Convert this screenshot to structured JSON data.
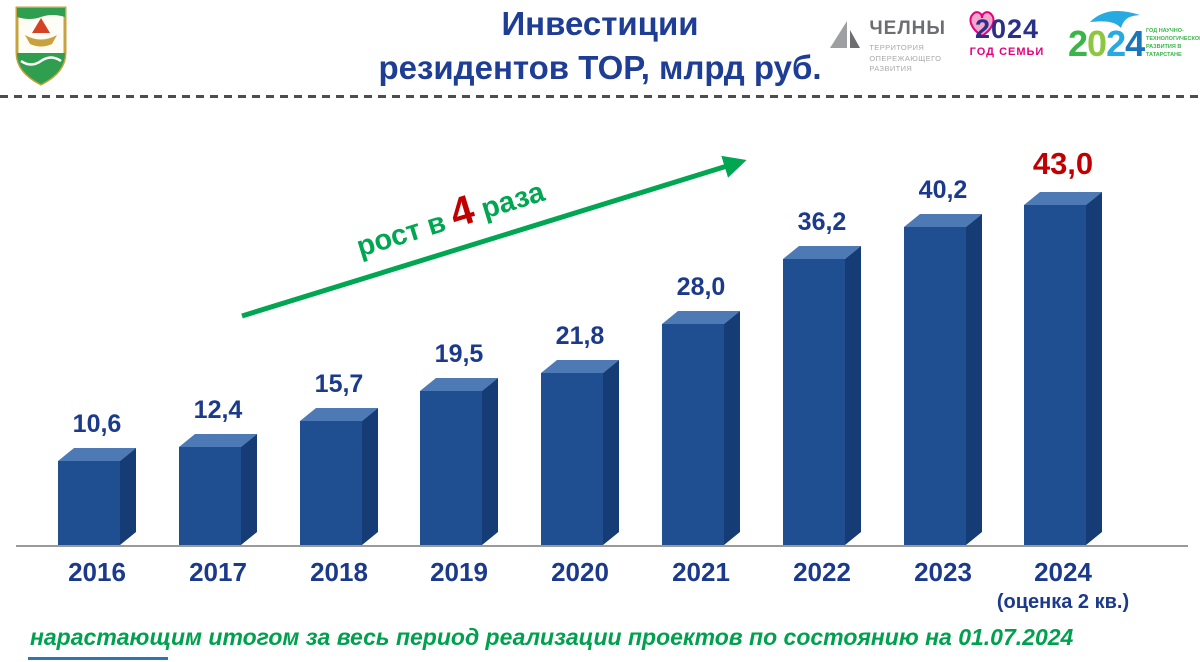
{
  "header": {
    "title_line1": "Инвестиции",
    "title_line2": "резидентов ТОР, млрд руб."
  },
  "logos": {
    "chelny": {
      "name": "ЧЕЛНЫ",
      "subtitle_lines": [
        "ТЕРРИТОРИЯ",
        "ОПЕРЕЖАЮЩЕГО",
        "РАЗВИТИЯ"
      ]
    },
    "family_year": {
      "year": "2024",
      "label": "ГОД СЕМЬИ"
    },
    "science_year": {
      "digits": [
        "2",
        "0",
        "2",
        "4"
      ],
      "label": "ГОД НАУЧНО-ТЕХНОЛОГИЧЕСКОГО РАЗВИТИЯ В ТАТАРСТАНЕ"
    }
  },
  "chart_data": {
    "type": "bar",
    "title": "Инвестиции резидентов ТОР, млрд руб.",
    "categories": [
      "2016",
      "2017",
      "2018",
      "2019",
      "2020",
      "2021",
      "2022",
      "2023",
      "2024"
    ],
    "values": [
      10.6,
      12.4,
      15.7,
      19.5,
      21.8,
      28.0,
      36.2,
      40.2,
      43.0
    ],
    "value_labels": [
      "10,6",
      "12,4",
      "15,7",
      "19,5",
      "21,8",
      "28,0",
      "36,2",
      "40,2",
      "43,0"
    ],
    "last_category_note": "(оценка 2 кв.)",
    "highlight_last": true,
    "ylabel": "млрд руб.",
    "ylim": [
      0,
      45
    ],
    "grid": false,
    "legend": "none",
    "colors": {
      "front": "#1f4e91",
      "side": "#153c74",
      "top": "#4d79b5",
      "label": "#1b3a8c",
      "highlight": "#c00000"
    }
  },
  "annotation": {
    "growth_prefix": "рост в ",
    "growth_number": "4",
    "growth_suffix": " раза"
  },
  "footer": {
    "note": "нарастающим итогом за весь период реализации проектов по состоянию на 01.07.2024"
  }
}
